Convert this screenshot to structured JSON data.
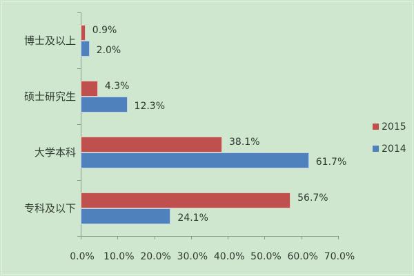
{
  "chart_data": {
    "type": "bar",
    "orientation": "horizontal",
    "title": "",
    "xlabel": "",
    "ylabel": "",
    "xlim": [
      0,
      70
    ],
    "x_ticks": [
      "0.0%",
      "10.0%",
      "20.0%",
      "30.0%",
      "40.0%",
      "50.0%",
      "60.0%",
      "70.0%"
    ],
    "grid": false,
    "legend_position": "right",
    "categories": [
      "博士及以上",
      "硕士研究生",
      "大学本科",
      "专科及以下"
    ],
    "series": [
      {
        "name": "2015",
        "color": "#c0504d",
        "values": [
          0.9,
          4.3,
          38.1,
          56.7
        ],
        "labels": [
          "0.9%",
          "4.3%",
          "38.1%",
          "56.7%"
        ]
      },
      {
        "name": "2014",
        "color": "#4f81bd",
        "values": [
          2.0,
          12.3,
          61.7,
          24.1
        ],
        "labels": [
          "2.0%",
          "12.3%",
          "61.7%",
          "24.1%"
        ]
      }
    ]
  },
  "legend": [
    {
      "label": "2015",
      "color": "#c0504d"
    },
    {
      "label": "2014",
      "color": "#4f81bd"
    }
  ]
}
